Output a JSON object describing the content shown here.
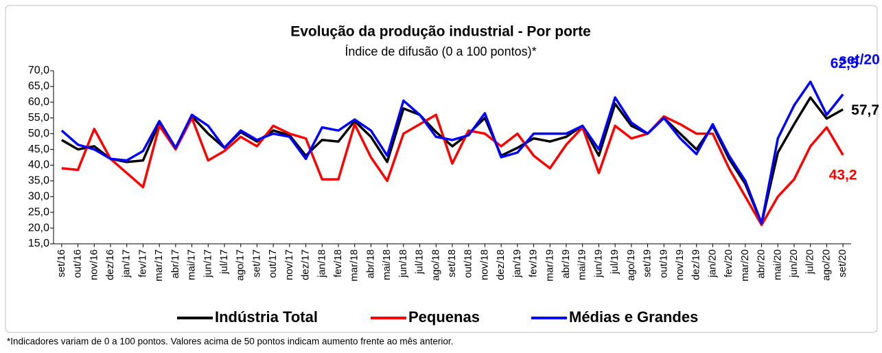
{
  "chart_data": {
    "type": "line",
    "title": "Evolução da produção industrial - Por porte",
    "subtitle": "Índice de difusão (0 a 100 pontos)*",
    "annotation": "set/20",
    "footnote": "*Indicadores variam de 0 a 100 pontos. Valores acima de 50 pontos indicam aumento frente ao mês anterior.",
    "categories": [
      "set/16",
      "out/16",
      "nov/16",
      "dez/16",
      "jan/17",
      "fev/17",
      "mar/17",
      "abr/17",
      "mai/17",
      "jun/17",
      "jul/17",
      "ago/17",
      "set/17",
      "out/17",
      "nov/17",
      "dez/17",
      "jan/18",
      "fev/18",
      "mar/18",
      "abr/18",
      "mai/18",
      "jun/18",
      "jul/18",
      "ago/18",
      "set/18",
      "out/18",
      "nov/18",
      "dez/18",
      "jan/19",
      "fev/19",
      "mar/19",
      "abr/19",
      "mai/19",
      "jun/19",
      "jul/19",
      "ago/19",
      "set/19",
      "out/19",
      "nov/19",
      "dez/19",
      "jan/20",
      "fev/20",
      "mar/20",
      "abr/20",
      "mai/20",
      "jun/20",
      "jul/20",
      "ago/20",
      "set/20"
    ],
    "series": [
      {
        "name": "Indústria Total",
        "color": "#000000",
        "values": [
          48,
          45,
          46,
          42,
          41,
          41.5,
          53.5,
          45.5,
          55.5,
          50,
          45.5,
          50.5,
          47.5,
          51,
          49.5,
          43,
          48,
          47.5,
          54,
          49,
          41,
          58,
          56,
          50.5,
          46,
          50,
          55,
          43,
          45.5,
          48.5,
          47.5,
          49,
          52.5,
          43,
          59.5,
          52.5,
          50,
          55,
          50,
          45,
          52.5,
          42,
          34,
          21.5,
          44,
          53,
          61.5,
          54.8,
          57.7
        ],
        "value_labels": [
          null,
          null,
          null,
          null,
          null,
          null,
          null,
          null,
          null,
          null,
          null,
          null,
          null,
          null,
          null,
          null,
          null,
          null,
          null,
          null,
          null,
          null,
          null,
          null,
          null,
          null,
          null,
          null,
          null,
          null,
          null,
          null,
          null,
          null,
          null,
          null,
          null,
          null,
          null,
          null,
          null,
          null,
          null,
          null,
          null,
          null,
          null,
          null,
          "57,7"
        ]
      },
      {
        "name": "Pequenas",
        "color": "#ff0000",
        "values": [
          39,
          38.5,
          51.5,
          42,
          37.5,
          33,
          52.5,
          45,
          55,
          41.5,
          44.5,
          49,
          46,
          52.5,
          50,
          48.5,
          35.5,
          35.5,
          53,
          42.5,
          35,
          50,
          53,
          56,
          40.5,
          51,
          50,
          46,
          50,
          43,
          39,
          46.5,
          52,
          37.5,
          52.5,
          48.5,
          50,
          55.5,
          53,
          50,
          50,
          39,
          30,
          21,
          30,
          35.5,
          46,
          52,
          43.2
        ],
        "value_labels": [
          null,
          null,
          null,
          null,
          null,
          null,
          null,
          null,
          null,
          null,
          null,
          null,
          null,
          null,
          null,
          null,
          null,
          null,
          null,
          null,
          null,
          null,
          null,
          null,
          null,
          null,
          null,
          null,
          null,
          null,
          null,
          null,
          null,
          null,
          null,
          null,
          null,
          null,
          null,
          null,
          null,
          null,
          null,
          null,
          null,
          null,
          null,
          null,
          "43,2"
        ]
      },
      {
        "name": "Médias e Grandes",
        "color": "#0000ff",
        "values": [
          51,
          46.5,
          45,
          42,
          41.5,
          44.5,
          54,
          45.5,
          56,
          52.5,
          45.5,
          51,
          48,
          50,
          49,
          42,
          52,
          51,
          54.5,
          51,
          43,
          60.5,
          56,
          49,
          48,
          49.5,
          56.5,
          42.5,
          44,
          50,
          50,
          50,
          52.5,
          45,
          61.5,
          53.5,
          50,
          55,
          48.5,
          43.5,
          53,
          43,
          35,
          21.5,
          48.5,
          59,
          66.5,
          56,
          62.5
        ],
        "value_labels": [
          null,
          null,
          null,
          null,
          null,
          null,
          null,
          null,
          null,
          null,
          null,
          null,
          null,
          null,
          null,
          null,
          null,
          null,
          null,
          null,
          null,
          null,
          null,
          null,
          null,
          null,
          null,
          null,
          null,
          null,
          null,
          null,
          null,
          null,
          null,
          null,
          null,
          null,
          null,
          null,
          null,
          null,
          null,
          null,
          null,
          null,
          null,
          null,
          "62,5"
        ]
      }
    ],
    "ylim": [
      15,
      70
    ],
    "yticks": [
      {
        "value": 15,
        "label": "15,0"
      },
      {
        "value": 20,
        "label": "20,0"
      },
      {
        "value": 25,
        "label": "25,0"
      },
      {
        "value": 30,
        "label": "30,0"
      },
      {
        "value": 35,
        "label": "35,0"
      },
      {
        "value": 40,
        "label": "40,0"
      },
      {
        "value": 45,
        "label": "45,0"
      },
      {
        "value": 50,
        "label": "50,0"
      },
      {
        "value": 55,
        "label": "55,0"
      },
      {
        "value": 60,
        "label": "60,0"
      },
      {
        "value": 65,
        "label": "65,0"
      },
      {
        "value": 70,
        "label": "70,0"
      }
    ],
    "grid": false,
    "legend": "bottom"
  }
}
